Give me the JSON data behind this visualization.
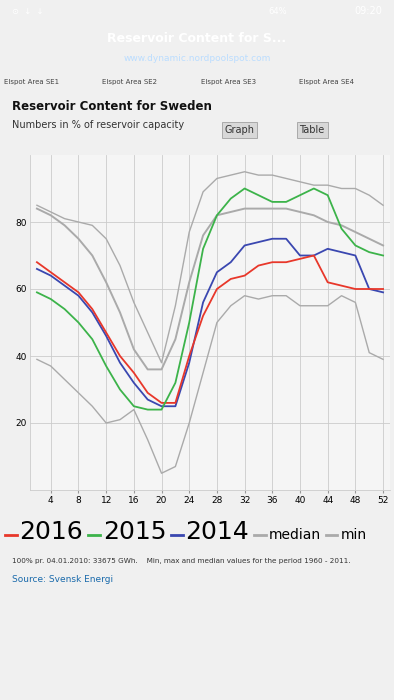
{
  "title": "Reservoir Content for Sweden",
  "subtitle": "Numbers in % of reservoir capacity",
  "note1": "100% pr. 04.01.2010: 33675 GWh.    Min, max and median values for the period 1960 - 2011.",
  "note2": "Source: Svensk Energi",
  "x_ticks": [
    4,
    8,
    12,
    16,
    20,
    24,
    28,
    32,
    36,
    40,
    44,
    48,
    52
  ],
  "y_ticks": [
    20,
    40,
    60,
    80
  ],
  "xlim": [
    1,
    53
  ],
  "ylim": [
    0,
    100
  ],
  "weeks": [
    2,
    4,
    6,
    8,
    10,
    12,
    14,
    16,
    18,
    20,
    22,
    24,
    26,
    28,
    30,
    32,
    34,
    36,
    38,
    40,
    42,
    44,
    46,
    48,
    50,
    52
  ],
  "val_2016": [
    68,
    65,
    62,
    59,
    54,
    47,
    40,
    35,
    29,
    26,
    26,
    40,
    52,
    60,
    63,
    64,
    67,
    68,
    68,
    69,
    70,
    62,
    61,
    60,
    60,
    60
  ],
  "val_2015": [
    59,
    57,
    54,
    50,
    45,
    37,
    30,
    25,
    24,
    24,
    32,
    50,
    72,
    82,
    87,
    90,
    88,
    86,
    86,
    88,
    90,
    88,
    78,
    73,
    71,
    70
  ],
  "val_2014": [
    66,
    64,
    61,
    58,
    53,
    46,
    38,
    32,
    27,
    25,
    25,
    38,
    56,
    65,
    68,
    73,
    74,
    75,
    75,
    70,
    70,
    72,
    71,
    70,
    60,
    59
  ],
  "val_median": [
    84,
    82,
    79,
    75,
    70,
    62,
    53,
    42,
    36,
    36,
    45,
    62,
    76,
    82,
    83,
    84,
    84,
    84,
    84,
    83,
    82,
    80,
    79,
    77,
    75,
    73
  ],
  "val_max": [
    85,
    83,
    81,
    80,
    79,
    75,
    67,
    56,
    47,
    38,
    55,
    77,
    89,
    93,
    94,
    95,
    94,
    94,
    93,
    92,
    91,
    91,
    90,
    90,
    88,
    85
  ],
  "val_min": [
    39,
    37,
    33,
    29,
    25,
    20,
    21,
    24,
    15,
    5,
    7,
    20,
    35,
    50,
    55,
    58,
    57,
    58,
    58,
    55,
    55,
    55,
    58,
    56,
    41,
    39
  ],
  "color_2016": "#e8372a",
  "color_2015": "#3cb34a",
  "color_2014": "#3a47b0",
  "color_gray": "#aaaaaa",
  "bg_color": "#f0f0f0",
  "plot_bg": "#f5f5f5",
  "grid_color": "#cccccc",
  "status_bar_color": "#3d3d3d",
  "nav_bar_color": "#4a4a4a",
  "tab_bar_color": "#e0e0e0",
  "tabs": [
    "Elspot Area SE1",
    "Elspot Area SE2",
    "Elspot Area SE3",
    "Elspot Area SE4"
  ],
  "nav_title": "Reservoir Content for S...",
  "nav_url": "www.dynamic.nordpoolspot.com",
  "time_str": "09:20",
  "btn_graph": "Graph",
  "btn_table": "Table"
}
